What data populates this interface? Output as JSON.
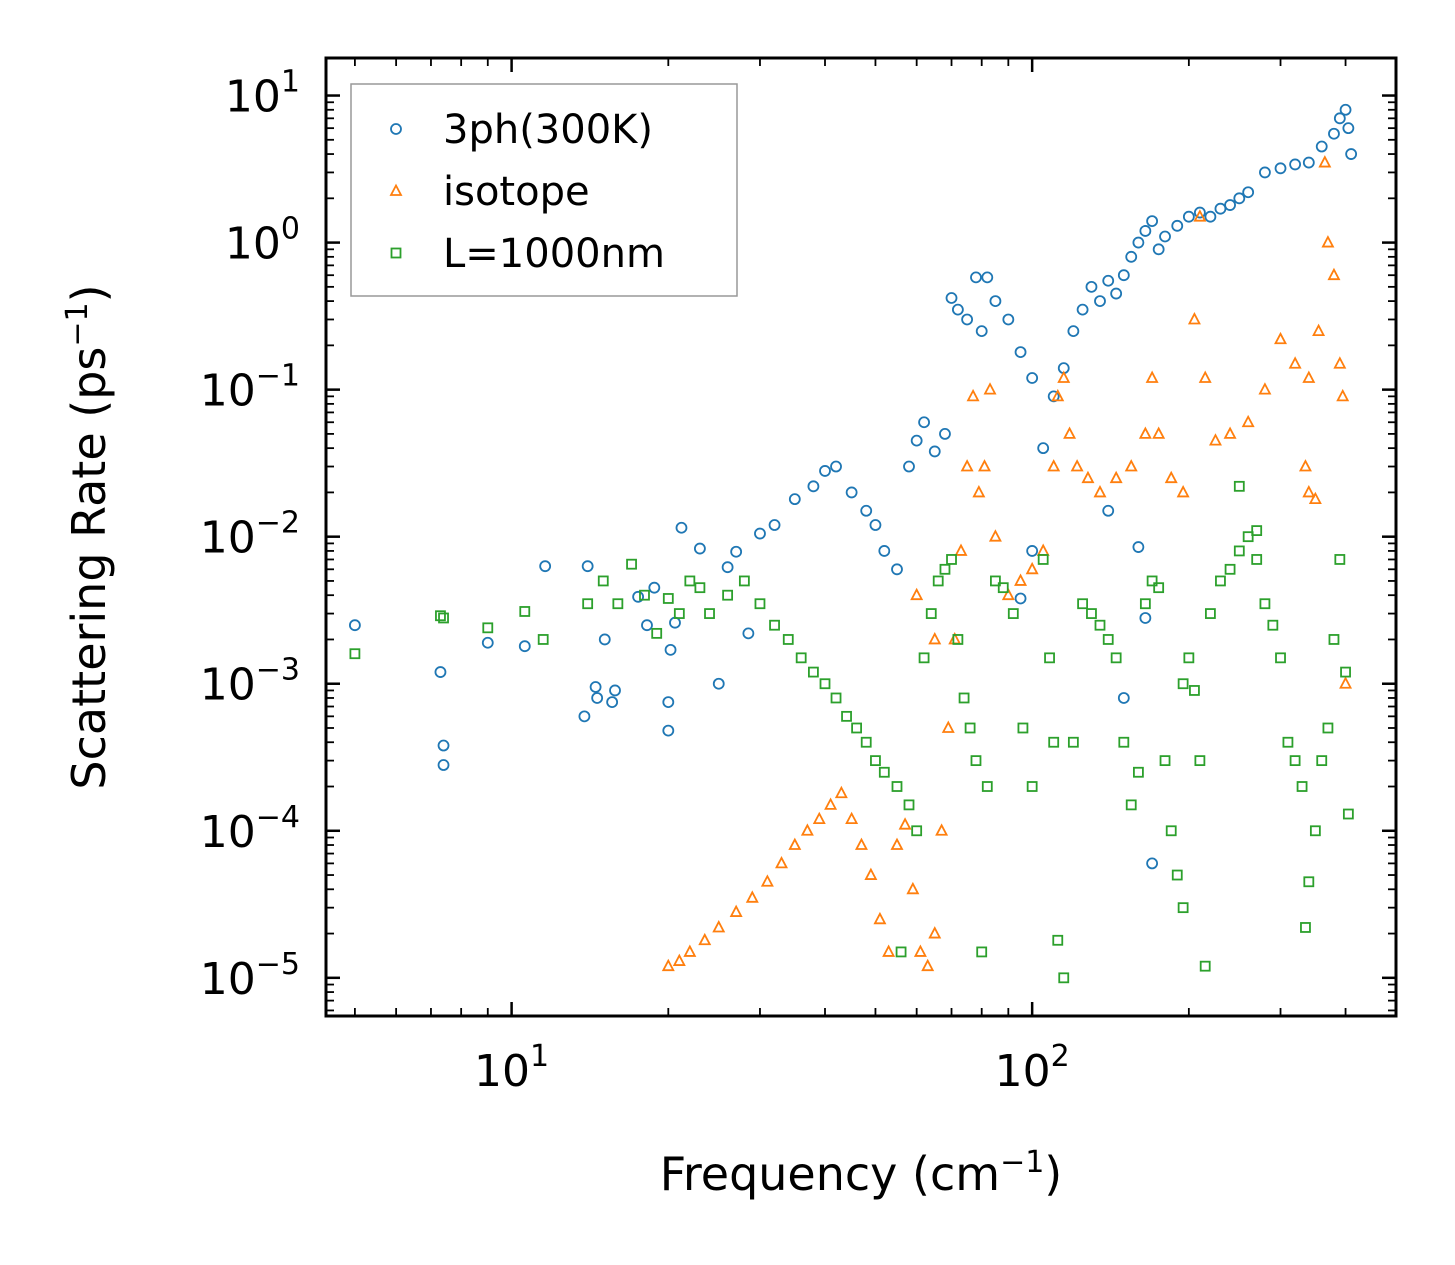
{
  "chart_data": {
    "type": "scatter",
    "xscale": "log",
    "yscale": "log",
    "xlabel": "Frequency (cm",
    "xlabel_unit_exp": "−1",
    "xlabel_close": ")",
    "ylabel": "Scattering Rate (ps",
    "ylabel_unit_exp": "−1",
    "ylabel_close": ")",
    "xlim": [
      4.4,
      500
    ],
    "ylim": [
      5.5e-06,
      18
    ],
    "x_ticks": [
      {
        "value": 10,
        "base": "10",
        "exp": "1"
      },
      {
        "value": 100,
        "base": "10",
        "exp": "2"
      }
    ],
    "y_ticks": [
      {
        "value": 10,
        "base": "10",
        "exp": "1"
      },
      {
        "value": 1,
        "base": "10",
        "exp": "0"
      },
      {
        "value": 0.1,
        "base": "10",
        "exp": "−1"
      },
      {
        "value": 0.01,
        "base": "10",
        "exp": "−2"
      },
      {
        "value": 0.001,
        "base": "10",
        "exp": "−3"
      },
      {
        "value": 0.0001,
        "base": "10",
        "exp": "−4"
      },
      {
        "value": 1e-05,
        "base": "10",
        "exp": "−5"
      }
    ],
    "legend_position": "top-left",
    "series": [
      {
        "name": "3ph(300K)",
        "marker": "circle",
        "color": "#1f77b4",
        "points": [
          [
            5.0,
            0.0025
          ],
          [
            7.3,
            0.0012
          ],
          [
            7.4,
            0.00038
          ],
          [
            7.4,
            0.00028
          ],
          [
            9.0,
            0.0019
          ],
          [
            10.6,
            0.0018
          ],
          [
            11.6,
            0.0063
          ],
          [
            13.8,
            0.0006
          ],
          [
            14.0,
            0.0063
          ],
          [
            14.5,
            0.00095
          ],
          [
            14.6,
            0.0008
          ],
          [
            15.1,
            0.002
          ],
          [
            15.6,
            0.00075
          ],
          [
            15.8,
            0.0009
          ],
          [
            17.5,
            0.0039
          ],
          [
            18.2,
            0.0025
          ],
          [
            18.8,
            0.0045
          ],
          [
            20.0,
            0.00075
          ],
          [
            20.0,
            0.00048
          ],
          [
            20.2,
            0.0017
          ],
          [
            20.6,
            0.0026
          ],
          [
            21.2,
            0.0115
          ],
          [
            23.0,
            0.0083
          ],
          [
            25.0,
            0.001
          ],
          [
            26.0,
            0.0062
          ],
          [
            27.0,
            0.0079
          ],
          [
            28.5,
            0.0022
          ],
          [
            30.0,
            0.0105
          ],
          [
            32.0,
            0.012
          ],
          [
            35.0,
            0.018
          ],
          [
            38.0,
            0.022
          ],
          [
            40.0,
            0.028
          ],
          [
            42.0,
            0.03
          ],
          [
            45.0,
            0.02
          ],
          [
            48.0,
            0.015
          ],
          [
            50.0,
            0.012
          ],
          [
            52.0,
            0.008
          ],
          [
            55.0,
            0.006
          ],
          [
            58.0,
            0.03
          ],
          [
            60.0,
            0.045
          ],
          [
            62.0,
            0.06
          ],
          [
            65.0,
            0.038
          ],
          [
            68.0,
            0.05
          ],
          [
            70.0,
            0.42
          ],
          [
            72.0,
            0.35
          ],
          [
            75.0,
            0.3
          ],
          [
            78.0,
            0.58
          ],
          [
            80.0,
            0.25
          ],
          [
            82.0,
            0.58
          ],
          [
            85.0,
            0.4
          ],
          [
            90.0,
            0.3
          ],
          [
            95.0,
            0.18
          ],
          [
            100.0,
            0.12
          ],
          [
            105.0,
            0.04
          ],
          [
            110.0,
            0.09
          ],
          [
            115.0,
            0.14
          ],
          [
            120.0,
            0.25
          ],
          [
            125.0,
            0.35
          ],
          [
            130.0,
            0.5
          ],
          [
            135.0,
            0.4
          ],
          [
            140.0,
            0.55
          ],
          [
            145.0,
            0.45
          ],
          [
            150.0,
            0.6
          ],
          [
            155.0,
            0.8
          ],
          [
            160.0,
            1.0
          ],
          [
            165.0,
            1.2
          ],
          [
            170.0,
            1.4
          ],
          [
            175.0,
            0.9
          ],
          [
            180.0,
            1.1
          ],
          [
            190.0,
            1.3
          ],
          [
            200.0,
            1.5
          ],
          [
            210.0,
            1.6
          ],
          [
            220.0,
            1.5
          ],
          [
            230.0,
            1.7
          ],
          [
            240.0,
            1.8
          ],
          [
            250.0,
            2.0
          ],
          [
            260.0,
            2.2
          ],
          [
            280.0,
            3.0
          ],
          [
            300.0,
            3.2
          ],
          [
            320.0,
            3.4
          ],
          [
            340.0,
            3.5
          ],
          [
            360.0,
            4.5
          ],
          [
            380.0,
            5.5
          ],
          [
            390.0,
            7.0
          ],
          [
            400.0,
            8.0
          ],
          [
            405.0,
            6.0
          ],
          [
            410.0,
            4.0
          ],
          [
            160.0,
            0.0085
          ],
          [
            165.0,
            0.0028
          ],
          [
            170.0,
            6e-05
          ],
          [
            150.0,
            0.0008
          ],
          [
            140.0,
            0.015
          ],
          [
            100.0,
            0.008
          ],
          [
            95.0,
            0.0038
          ]
        ]
      },
      {
        "name": "isotope",
        "marker": "triangle",
        "color": "#ff7f0e",
        "points": [
          [
            20.0,
            1.2e-05
          ],
          [
            21.0,
            1.3e-05
          ],
          [
            22.0,
            1.5e-05
          ],
          [
            23.5,
            1.8e-05
          ],
          [
            25.0,
            2.2e-05
          ],
          [
            27.0,
            2.8e-05
          ],
          [
            29.0,
            3.5e-05
          ],
          [
            31.0,
            4.5e-05
          ],
          [
            33.0,
            6e-05
          ],
          [
            35.0,
            8e-05
          ],
          [
            37.0,
            0.0001
          ],
          [
            39.0,
            0.00012
          ],
          [
            41.0,
            0.00015
          ],
          [
            43.0,
            0.00018
          ],
          [
            45.0,
            0.00012
          ],
          [
            47.0,
            8e-05
          ],
          [
            49.0,
            5e-05
          ],
          [
            51.0,
            2.5e-05
          ],
          [
            53.0,
            1.5e-05
          ],
          [
            55.0,
            8e-05
          ],
          [
            57.0,
            0.00011
          ],
          [
            59.0,
            4e-05
          ],
          [
            61.0,
            1.5e-05
          ],
          [
            63.0,
            1.2e-05
          ],
          [
            65.0,
            2e-05
          ],
          [
            67.0,
            0.0001
          ],
          [
            69.0,
            0.0005
          ],
          [
            71.0,
            0.002
          ],
          [
            73.0,
            0.008
          ],
          [
            75.0,
            0.03
          ],
          [
            77.0,
            0.09
          ],
          [
            79.0,
            0.02
          ],
          [
            81.0,
            0.03
          ],
          [
            83.0,
            0.1
          ],
          [
            85.0,
            0.01
          ],
          [
            90.0,
            0.004
          ],
          [
            95.0,
            0.005
          ],
          [
            100.0,
            0.006
          ],
          [
            105.0,
            0.008
          ],
          [
            110.0,
            0.03
          ],
          [
            112.0,
            0.09
          ],
          [
            115.0,
            0.12
          ],
          [
            118.0,
            0.05
          ],
          [
            122.0,
            0.03
          ],
          [
            128.0,
            0.025
          ],
          [
            135.0,
            0.02
          ],
          [
            145.0,
            0.025
          ],
          [
            155.0,
            0.03
          ],
          [
            165.0,
            0.05
          ],
          [
            170.0,
            0.12
          ],
          [
            175.0,
            0.05
          ],
          [
            185.0,
            0.025
          ],
          [
            195.0,
            0.02
          ],
          [
            205.0,
            0.3
          ],
          [
            210.0,
            1.5
          ],
          [
            215.0,
            0.12
          ],
          [
            225.0,
            0.045
          ],
          [
            240.0,
            0.05
          ],
          [
            260.0,
            0.06
          ],
          [
            280.0,
            0.1
          ],
          [
            300.0,
            0.22
          ],
          [
            320.0,
            0.15
          ],
          [
            340.0,
            0.12
          ],
          [
            355.0,
            0.25
          ],
          [
            365.0,
            3.5
          ],
          [
            370.0,
            1.0
          ],
          [
            380.0,
            0.6
          ],
          [
            390.0,
            0.15
          ],
          [
            395.0,
            0.09
          ],
          [
            400.0,
            0.001
          ],
          [
            335.0,
            0.03
          ],
          [
            340.0,
            0.02
          ],
          [
            350.0,
            0.018
          ],
          [
            60.0,
            0.004
          ],
          [
            65.0,
            0.002
          ]
        ]
      },
      {
        "name": "L=1000nm",
        "marker": "square",
        "color": "#2ca02c",
        "points": [
          [
            5.0,
            0.0016
          ],
          [
            7.3,
            0.0029
          ],
          [
            7.4,
            0.0028
          ],
          [
            9.0,
            0.0024
          ],
          [
            10.6,
            0.0031
          ],
          [
            11.5,
            0.002
          ],
          [
            14.0,
            0.0035
          ],
          [
            15.0,
            0.005
          ],
          [
            16.0,
            0.0035
          ],
          [
            17.0,
            0.0065
          ],
          [
            18.0,
            0.004
          ],
          [
            19.0,
            0.0022
          ],
          [
            20.0,
            0.0038
          ],
          [
            21.0,
            0.003
          ],
          [
            22.0,
            0.005
          ],
          [
            23.0,
            0.0045
          ],
          [
            24.0,
            0.003
          ],
          [
            26.0,
            0.004
          ],
          [
            28.0,
            0.005
          ],
          [
            30.0,
            0.0035
          ],
          [
            32.0,
            0.0025
          ],
          [
            34.0,
            0.002
          ],
          [
            36.0,
            0.0015
          ],
          [
            38.0,
            0.0012
          ],
          [
            40.0,
            0.001
          ],
          [
            42.0,
            0.0008
          ],
          [
            44.0,
            0.0006
          ],
          [
            46.0,
            0.0005
          ],
          [
            48.0,
            0.0004
          ],
          [
            50.0,
            0.0003
          ],
          [
            52.0,
            0.00025
          ],
          [
            55.0,
            0.0002
          ],
          [
            58.0,
            0.00015
          ],
          [
            60.0,
            0.0001
          ],
          [
            62.0,
            0.0015
          ],
          [
            64.0,
            0.003
          ],
          [
            66.0,
            0.005
          ],
          [
            68.0,
            0.006
          ],
          [
            70.0,
            0.007
          ],
          [
            72.0,
            0.002
          ],
          [
            74.0,
            0.0008
          ],
          [
            76.0,
            0.0005
          ],
          [
            78.0,
            0.0003
          ],
          [
            80.0,
            1.5e-05
          ],
          [
            82.0,
            0.0002
          ],
          [
            85.0,
            0.005
          ],
          [
            88.0,
            0.0045
          ],
          [
            92.0,
            0.003
          ],
          [
            96.0,
            0.0005
          ],
          [
            100.0,
            0.0002
          ],
          [
            105.0,
            0.007
          ],
          [
            108.0,
            0.0015
          ],
          [
            110.0,
            0.0004
          ],
          [
            112.0,
            1.8e-05
          ],
          [
            115.0,
            1e-05
          ],
          [
            120.0,
            0.0004
          ],
          [
            125.0,
            0.0035
          ],
          [
            130.0,
            0.003
          ],
          [
            135.0,
            0.0025
          ],
          [
            140.0,
            0.002
          ],
          [
            145.0,
            0.0015
          ],
          [
            150.0,
            0.0004
          ],
          [
            155.0,
            0.00015
          ],
          [
            160.0,
            0.00025
          ],
          [
            165.0,
            0.0035
          ],
          [
            170.0,
            0.005
          ],
          [
            175.0,
            0.0045
          ],
          [
            180.0,
            0.0003
          ],
          [
            185.0,
            0.0001
          ],
          [
            190.0,
            5e-05
          ],
          [
            195.0,
            3e-05
          ],
          [
            200.0,
            0.0015
          ],
          [
            205.0,
            0.0009
          ],
          [
            210.0,
            0.0003
          ],
          [
            215.0,
            1.2e-05
          ],
          [
            220.0,
            0.003
          ],
          [
            230.0,
            0.005
          ],
          [
            240.0,
            0.006
          ],
          [
            250.0,
            0.008
          ],
          [
            260.0,
            0.01
          ],
          [
            270.0,
            0.007
          ],
          [
            280.0,
            0.0035
          ],
          [
            290.0,
            0.0025
          ],
          [
            300.0,
            0.0015
          ],
          [
            310.0,
            0.0004
          ],
          [
            320.0,
            0.0003
          ],
          [
            330.0,
            0.0002
          ],
          [
            335.0,
            2.2e-05
          ],
          [
            340.0,
            4.5e-05
          ],
          [
            350.0,
            0.0001
          ],
          [
            360.0,
            0.0003
          ],
          [
            370.0,
            0.0005
          ],
          [
            380.0,
            0.002
          ],
          [
            390.0,
            0.007
          ],
          [
            400.0,
            0.0012
          ],
          [
            405.0,
            0.00013
          ],
          [
            250.0,
            0.022
          ],
          [
            270.0,
            0.011
          ],
          [
            195.0,
            0.001
          ],
          [
            56.0,
            1.5e-05
          ]
        ]
      }
    ]
  }
}
